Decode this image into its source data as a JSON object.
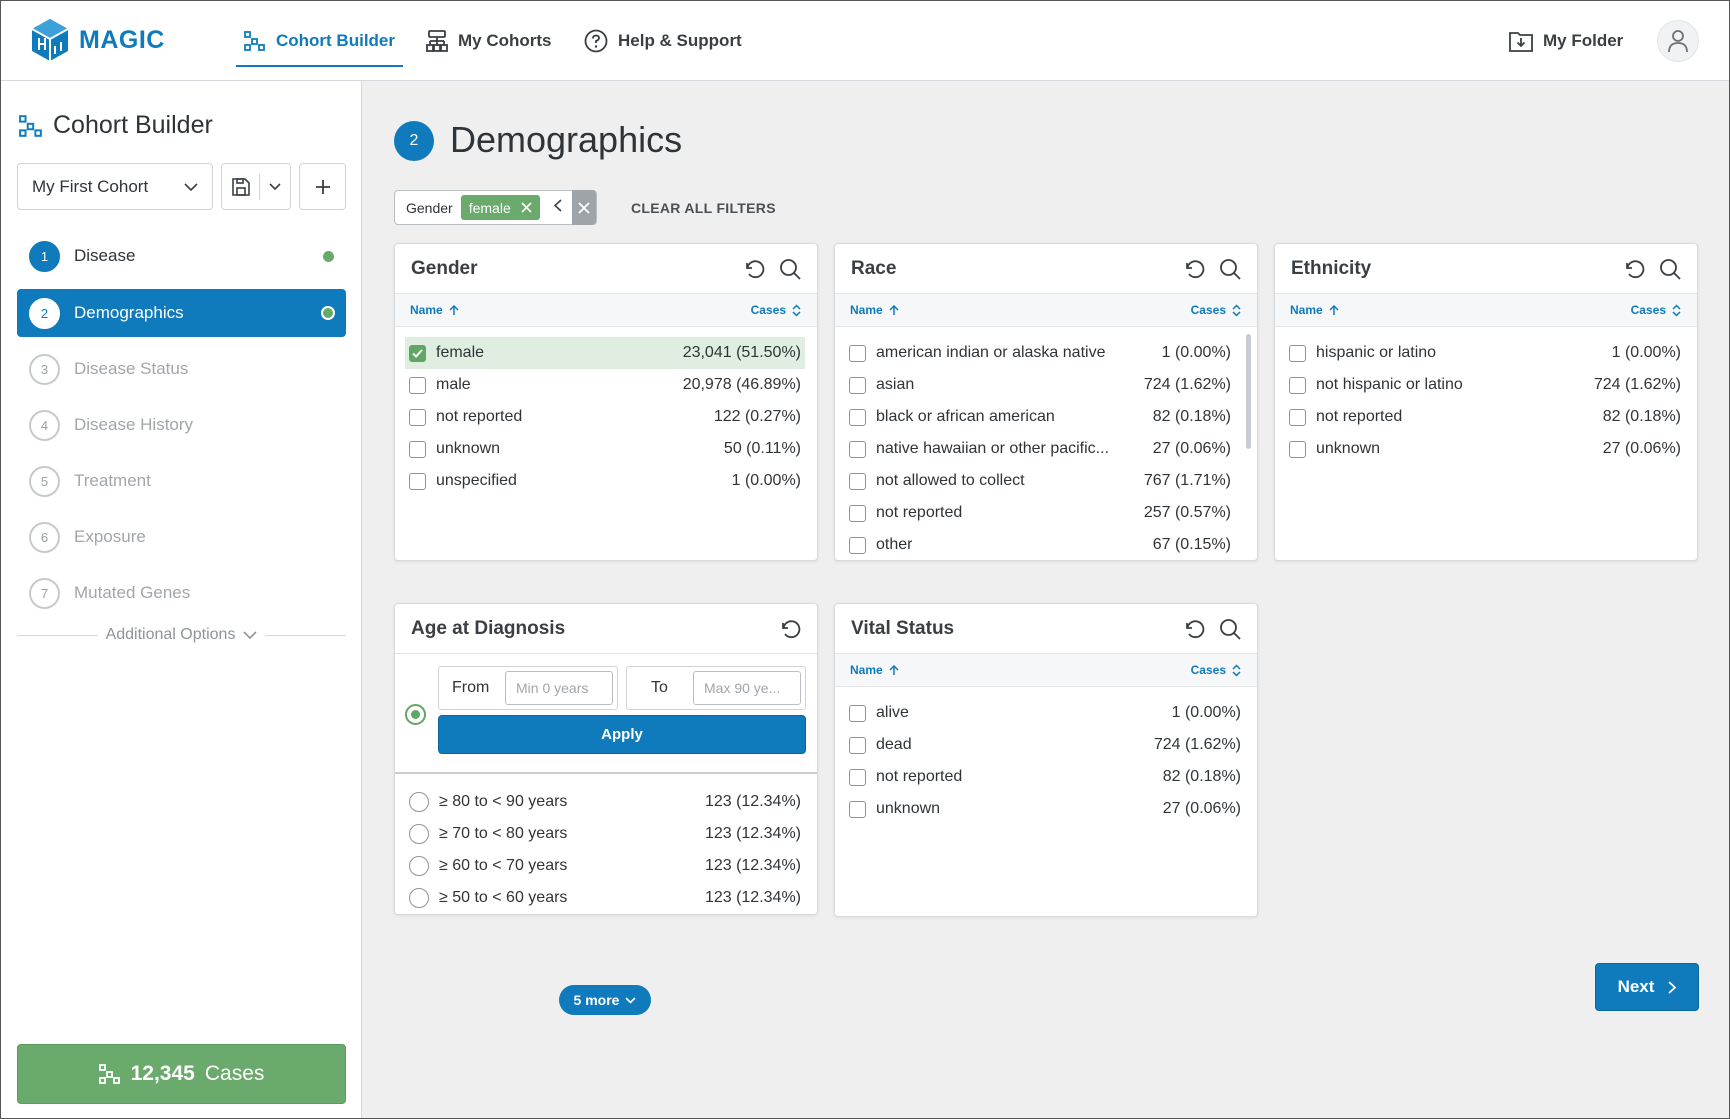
{
  "header": {
    "logo_text": "MAGIC",
    "nav": [
      {
        "label": "Cohort Builder",
        "active": true
      },
      {
        "label": "My Cohorts"
      },
      {
        "label": "Help & Support"
      }
    ],
    "my_folder": "My Folder"
  },
  "sidebar": {
    "title": "Cohort Builder",
    "cohort_name": "My First Cohort",
    "steps": [
      {
        "num": "1",
        "label": "Disease",
        "state": "done"
      },
      {
        "num": "2",
        "label": "Demographics",
        "state": "active"
      },
      {
        "num": "3",
        "label": "Disease Status"
      },
      {
        "num": "4",
        "label": "Disease History"
      },
      {
        "num": "5",
        "label": "Treatment"
      },
      {
        "num": "6",
        "label": "Exposure"
      },
      {
        "num": "7",
        "label": "Mutated Genes"
      }
    ],
    "additional_options": "Additional Options",
    "cases_count": "12,345",
    "cases_label": "Cases"
  },
  "main": {
    "step_num": "2",
    "title": "Demographics",
    "filter": {
      "field": "Gender",
      "value": "female"
    },
    "clear_all": "CLEAR ALL FILTERS",
    "col_name": "Name",
    "col_cases": "Cases",
    "gender": {
      "title": "Gender",
      "rows": [
        {
          "name": "female",
          "cases": "23,041 (51.50%)",
          "checked": true
        },
        {
          "name": "male",
          "cases": "20,978 (46.89%)"
        },
        {
          "name": "not reported",
          "cases": "122 (0.27%)"
        },
        {
          "name": "unknown",
          "cases": "50 (0.11%)"
        },
        {
          "name": "unspecified",
          "cases": "1 (0.00%)"
        }
      ]
    },
    "race": {
      "title": "Race",
      "rows": [
        {
          "name": "american indian or alaska native",
          "cases": "1 (0.00%)"
        },
        {
          "name": "asian",
          "cases": "724 (1.62%)"
        },
        {
          "name": "black or african american",
          "cases": "82 (0.18%)"
        },
        {
          "name": "native hawaiian or other pacific...",
          "cases": "27 (0.06%)"
        },
        {
          "name": "not allowed to collect",
          "cases": "767 (1.71%)"
        },
        {
          "name": "not reported",
          "cases": "257 (0.57%)"
        },
        {
          "name": "other",
          "cases": "67 (0.15%)"
        }
      ]
    },
    "ethnicity": {
      "title": "Ethnicity",
      "rows": [
        {
          "name": "hispanic or latino",
          "cases": "1 (0.00%)"
        },
        {
          "name": "not hispanic or latino",
          "cases": "724 (1.62%)"
        },
        {
          "name": "not reported",
          "cases": "82 (0.18%)"
        },
        {
          "name": "unknown",
          "cases": "27 (0.06%)"
        }
      ]
    },
    "age": {
      "title": "Age at Diagnosis",
      "from_label": "From",
      "from_placeholder": "Min 0 years",
      "to_label": "To",
      "to_placeholder": "Max 90 ye...",
      "apply": "Apply",
      "rows": [
        {
          "name": "≥ 80 to < 90 years",
          "cases": "123 (12.34%)"
        },
        {
          "name": "≥ 70 to < 80 years",
          "cases": "123 (12.34%)"
        },
        {
          "name": "≥ 60 to < 70 years",
          "cases": "123 (12.34%)"
        },
        {
          "name": "≥ 50 to < 60 years",
          "cases": "123 (12.34%)"
        }
      ],
      "more": "5 more"
    },
    "vital": {
      "title": "Vital Status",
      "rows": [
        {
          "name": "alive",
          "cases": "1 (0.00%)"
        },
        {
          "name": "dead",
          "cases": "724 (1.62%)"
        },
        {
          "name": "not reported",
          "cases": "82 (0.18%)"
        },
        {
          "name": "unknown",
          "cases": "27 (0.06%)"
        }
      ]
    },
    "next": "Next"
  }
}
